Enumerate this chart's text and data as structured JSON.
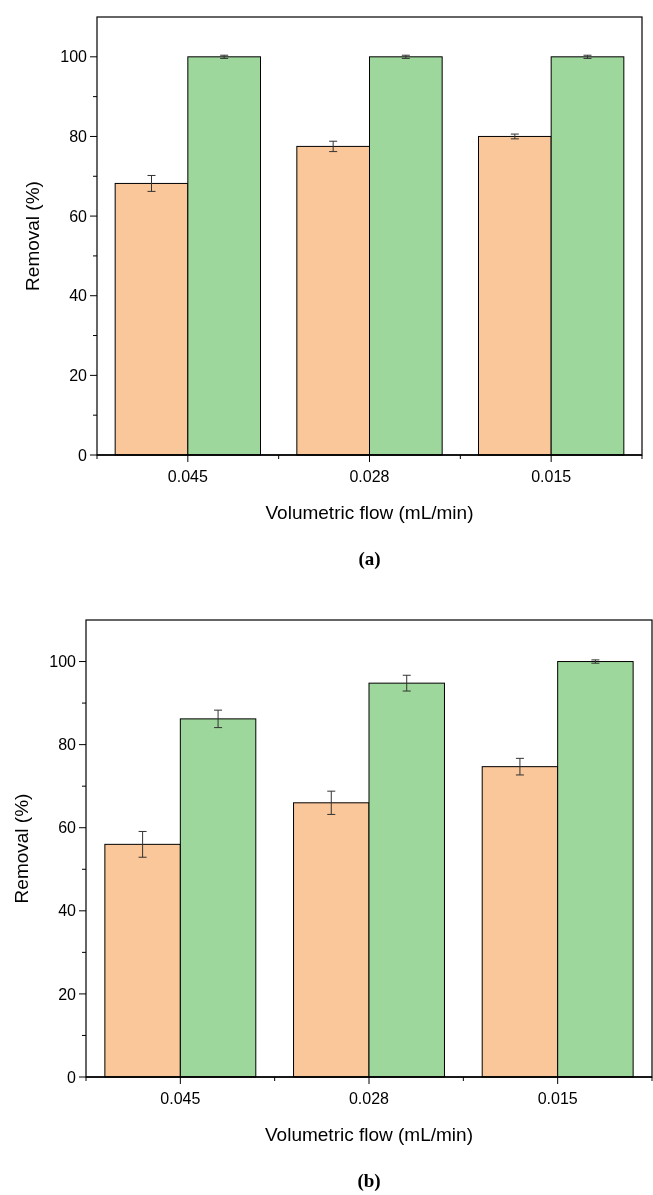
{
  "chart_data": [
    {
      "type": "bar",
      "title": "(a)",
      "xlabel": "Volumetric flow (mL/min)",
      "ylabel": "Removal (%)",
      "categories": [
        "0.045",
        "0.028",
        "0.015"
      ],
      "series": [
        {
          "color": "#f9c799",
          "values": [
            68.2,
            77.5,
            80
          ],
          "errors": [
            2,
            1.3,
            0.6
          ]
        },
        {
          "color": "#9ed79b",
          "values": [
            100,
            100,
            100
          ],
          "errors": [
            0.4,
            0.4,
            0.4
          ]
        }
      ],
      "ylim": [
        0,
        110
      ],
      "yticks": [
        0,
        {
          "value": 10,
          "label": null
        },
        20,
        {
          "value": 30,
          "label": null
        },
        40,
        {
          "value": 50,
          "label": null
        },
        60,
        {
          "value": 70,
          "label": null
        },
        80,
        {
          "value": 90,
          "label": null
        },
        100
      ],
      "grid": false
    },
    {
      "type": "bar",
      "title": "(b)",
      "xlabel": "Volumetric flow (mL/min)",
      "ylabel": "Removal (%)",
      "categories": [
        "0.045",
        "0.028",
        "0.015"
      ],
      "series": [
        {
          "color": "#f9c799",
          "values": [
            56,
            66,
            74.7
          ],
          "errors": [
            3.1,
            2.8,
            2
          ]
        },
        {
          "color": "#9ed79b",
          "values": [
            86.2,
            94.8,
            100
          ],
          "errors": [
            2.1,
            1.9,
            0.4
          ]
        }
      ],
      "ylim": [
        0,
        110
      ],
      "yticks": [
        0,
        {
          "value": 10,
          "label": null
        },
        20,
        {
          "value": 30,
          "label": null
        },
        40,
        {
          "value": 50,
          "label": null
        },
        60,
        {
          "value": 70,
          "label": null
        },
        80,
        {
          "value": 90,
          "label": null
        },
        100
      ],
      "grid": false
    }
  ]
}
